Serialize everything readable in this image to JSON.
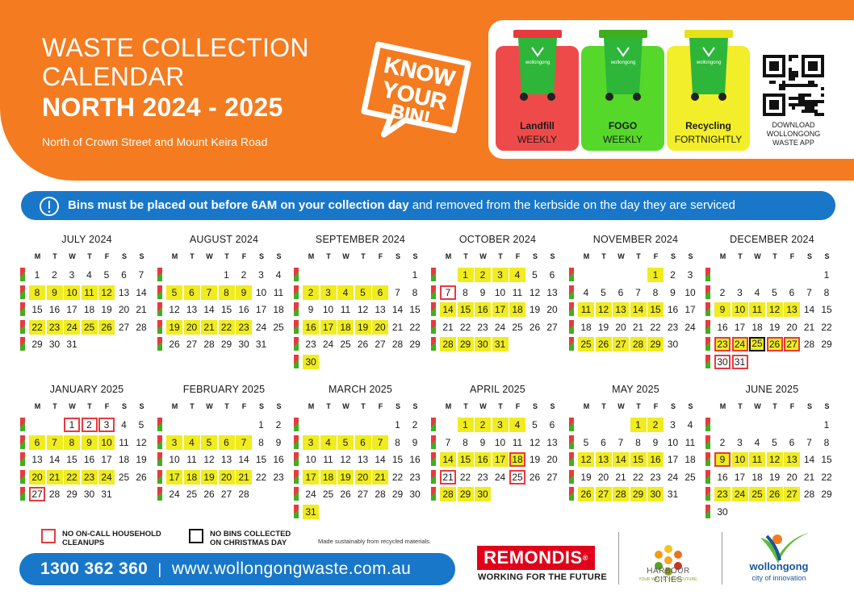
{
  "header": {
    "title_line1": "WASTE COLLECTION",
    "title_line2": "CALENDAR",
    "title_line3": "NORTH 2024 - 2025",
    "subtitle": "North of Crown Street and Mount Keira Road",
    "logo_text": "KNOW YOUR BIN!"
  },
  "bins": [
    {
      "name": "Landfill",
      "frequency": "WEEKLY",
      "color": "#ef4a4a",
      "lid": "#e8393f",
      "icon": "green-wheelie-bin-red-lid-icon"
    },
    {
      "name": "FOGO",
      "frequency": "WEEKLY",
      "color": "#56d82a",
      "lid": "#3fae1f",
      "icon": "green-wheelie-bin-green-lid-icon"
    },
    {
      "name": "Recycling",
      "frequency": "FORTNIGHTLY",
      "color": "#f2ee29",
      "lid": "#e7e11b",
      "icon": "green-wheelie-bin-yellow-lid-icon"
    }
  ],
  "bin_brand": "wollongong",
  "app": {
    "caption_line1": "DOWNLOAD",
    "caption_line2": "WOLLONGONG",
    "caption_line3": "WASTE APP"
  },
  "notice": {
    "bold": "Bins must be placed out before 6AM on your collection day",
    "rest": " and removed from the kerbside on the day they are serviced"
  },
  "weekday_labels": [
    "M",
    "T",
    "W",
    "T",
    "F",
    "S",
    "S"
  ],
  "week_marker_colors": {
    "landfill": "#e8393f",
    "fogo": "#3fae1f"
  },
  "months": [
    {
      "name": "JULY 2024",
      "start_dow": 0,
      "days": 31,
      "highlight": [
        8,
        9,
        10,
        11,
        12,
        22,
        23,
        24,
        25,
        26
      ],
      "red": [],
      "black": []
    },
    {
      "name": "AUGUST 2024",
      "start_dow": 3,
      "days": 31,
      "highlight": [
        5,
        6,
        7,
        8,
        9,
        19,
        20,
        21,
        22,
        23
      ],
      "red": [],
      "black": []
    },
    {
      "name": "SEPTEMBER 2024",
      "start_dow": 6,
      "days": 30,
      "highlight": [
        2,
        3,
        4,
        5,
        6,
        16,
        17,
        18,
        19,
        20,
        30
      ],
      "red": [],
      "black": []
    },
    {
      "name": "OCTOBER 2024",
      "start_dow": 1,
      "days": 31,
      "highlight": [
        1,
        2,
        3,
        4,
        14,
        15,
        16,
        17,
        18,
        28,
        29,
        30,
        31
      ],
      "red": [
        7
      ],
      "black": []
    },
    {
      "name": "NOVEMBER 2024",
      "start_dow": 4,
      "days": 30,
      "highlight": [
        1,
        11,
        12,
        13,
        14,
        15,
        25,
        26,
        27,
        28,
        29
      ],
      "red": [],
      "black": []
    },
    {
      "name": "DECEMBER 2024",
      "start_dow": 6,
      "days": 31,
      "highlight": [
        9,
        10,
        11,
        12,
        13,
        23,
        24,
        25,
        26,
        27
      ],
      "red": [
        23,
        24,
        26,
        27,
        30,
        31
      ],
      "black": [
        25
      ]
    },
    {
      "name": "JANUARY 2025",
      "start_dow": 2,
      "days": 31,
      "highlight": [
        6,
        7,
        8,
        9,
        10,
        20,
        21,
        22,
        23,
        24
      ],
      "red": [
        1,
        2,
        3,
        27
      ],
      "black": []
    },
    {
      "name": "FEBRUARY 2025",
      "start_dow": 5,
      "days": 28,
      "highlight": [
        3,
        4,
        5,
        6,
        7,
        17,
        18,
        19,
        20,
        21
      ],
      "red": [],
      "black": []
    },
    {
      "name": "MARCH 2025",
      "start_dow": 5,
      "days": 31,
      "highlight": [
        3,
        4,
        5,
        6,
        7,
        17,
        18,
        19,
        20,
        21,
        31
      ],
      "red": [],
      "black": []
    },
    {
      "name": "APRIL 2025",
      "start_dow": 1,
      "days": 30,
      "highlight": [
        1,
        2,
        3,
        4,
        14,
        15,
        16,
        17,
        18,
        28,
        29,
        30
      ],
      "red": [
        18,
        21,
        25
      ],
      "black": []
    },
    {
      "name": "MAY 2025",
      "start_dow": 3,
      "days": 31,
      "highlight": [
        1,
        2,
        12,
        13,
        14,
        15,
        16,
        26,
        27,
        28,
        29,
        30
      ],
      "red": [],
      "black": []
    },
    {
      "name": "JUNE 2025",
      "start_dow": 6,
      "days": 30,
      "highlight": [
        9,
        10,
        11,
        12,
        13,
        23,
        24,
        25,
        26,
        27
      ],
      "red": [
        9
      ],
      "black": []
    }
  ],
  "legend": {
    "red_line1": "NO ON-CALL HOUSEHOLD",
    "red_line2": "CLEANUPS",
    "black_line1": "NO BINS COLLECTED",
    "black_line2": "ON CHRISTMAS DAY",
    "recycled_note": "Made sustainably from recycled materials."
  },
  "contact": {
    "phone": "1300 362 360",
    "separator": "|",
    "website": "www.wollongongwaste.com.au"
  },
  "sponsors": {
    "remondis": "REMONDIS",
    "remondis_tagline": "WORKING FOR THE FUTURE",
    "harbour_cities": "HARBOUR CITIES",
    "harbour_tagline": "YOUR WASTE. YOUR FUTURE.",
    "wollongong": "wollongong",
    "wollongong_tagline": "city of innovation"
  }
}
